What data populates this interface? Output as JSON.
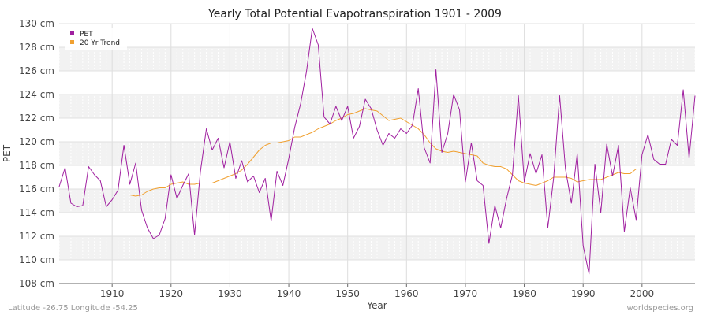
{
  "chart_data": {
    "type": "line",
    "title": "Yearly Total Potential Evapotranspiration 1901 - 2009",
    "xlabel": "Year",
    "ylabel": "PET",
    "xlim": [
      1901,
      2009
    ],
    "ylim": [
      108,
      130
    ],
    "y_unit": "cm",
    "x_ticks": [
      1910,
      1920,
      1930,
      1940,
      1950,
      1960,
      1970,
      1980,
      1990,
      2000
    ],
    "y_ticks": [
      108,
      110,
      112,
      114,
      116,
      118,
      120,
      122,
      124,
      126,
      128,
      130
    ],
    "y_tick_labels": [
      "108 cm",
      "110 cm",
      "112 cm",
      "114 cm",
      "116 cm",
      "118 cm",
      "120 cm",
      "122 cm",
      "124 cm",
      "126 cm",
      "128 cm",
      "130 cm"
    ],
    "grid": true,
    "legend_position": "top-left",
    "series": [
      {
        "name": "PET",
        "color": "#a020a0",
        "x": [
          1901,
          1902,
          1903,
          1904,
          1905,
          1906,
          1907,
          1908,
          1909,
          1910,
          1911,
          1912,
          1913,
          1914,
          1915,
          1916,
          1917,
          1918,
          1919,
          1920,
          1921,
          1922,
          1923,
          1924,
          1925,
          1926,
          1927,
          1928,
          1929,
          1930,
          1931,
          1932,
          1933,
          1934,
          1935,
          1936,
          1937,
          1938,
          1939,
          1940,
          1941,
          1942,
          1943,
          1944,
          1945,
          1946,
          1947,
          1948,
          1949,
          1950,
          1951,
          1952,
          1953,
          1954,
          1955,
          1956,
          1957,
          1958,
          1959,
          1960,
          1961,
          1962,
          1963,
          1964,
          1965,
          1966,
          1967,
          1968,
          1969,
          1970,
          1971,
          1972,
          1973,
          1974,
          1975,
          1976,
          1977,
          1978,
          1979,
          1980,
          1981,
          1982,
          1983,
          1984,
          1985,
          1986,
          1987,
          1988,
          1989,
          1990,
          1991,
          1992,
          1993,
          1994,
          1995,
          1996,
          1997,
          1998,
          1999,
          2000,
          2001,
          2002,
          2003,
          2004,
          2005,
          2006,
          2007,
          2008,
          2009
        ],
        "values": [
          116.2,
          117.8,
          114.8,
          114.5,
          114.6,
          117.9,
          117.2,
          116.7,
          114.5,
          115.1,
          115.9,
          119.7,
          116.4,
          118.2,
          114.2,
          112.7,
          111.8,
          112.1,
          113.5,
          117.2,
          115.2,
          116.3,
          117.3,
          112.1,
          117.5,
          121.1,
          119.3,
          120.3,
          117.8,
          120.0,
          116.9,
          118.4,
          116.6,
          117.1,
          115.7,
          116.9,
          113.3,
          117.5,
          116.3,
          118.6,
          121.2,
          123.2,
          125.9,
          129.6,
          128.2,
          122.1,
          121.5,
          123.0,
          121.8,
          123.0,
          120.3,
          121.3,
          123.6,
          122.8,
          121.0,
          119.7,
          120.7,
          120.3,
          121.1,
          120.7,
          121.4,
          124.5,
          119.5,
          118.2,
          126.1,
          119.1,
          120.7,
          124.0,
          122.7,
          116.6,
          119.9,
          116.7,
          116.3,
          111.4,
          114.6,
          112.7,
          115.2,
          117.2,
          123.9,
          116.6,
          119.0,
          117.3,
          118.9,
          112.7,
          117.0,
          123.9,
          117.7,
          114.8,
          119.0,
          111.2,
          108.8,
          118.1,
          114.0,
          119.8,
          117.1,
          119.7,
          112.4,
          116.1,
          113.4,
          118.9,
          120.6,
          118.5,
          118.1,
          118.1,
          120.2,
          119.7,
          124.4,
          118.6,
          123.9
        ]
      },
      {
        "name": "20 Yr Trend",
        "color": "#f0a030",
        "x": [
          1911,
          1912,
          1913,
          1914,
          1915,
          1916,
          1917,
          1918,
          1919,
          1920,
          1921,
          1922,
          1923,
          1924,
          1925,
          1926,
          1927,
          1928,
          1929,
          1930,
          1931,
          1932,
          1933,
          1934,
          1935,
          1936,
          1937,
          1938,
          1939,
          1940,
          1941,
          1942,
          1943,
          1944,
          1945,
          1946,
          1947,
          1948,
          1949,
          1950,
          1951,
          1952,
          1953,
          1954,
          1955,
          1956,
          1957,
          1958,
          1959,
          1960,
          1961,
          1962,
          1963,
          1964,
          1965,
          1966,
          1967,
          1968,
          1969,
          1970,
          1971,
          1972,
          1973,
          1974,
          1975,
          1976,
          1977,
          1978,
          1979,
          1980,
          1981,
          1982,
          1983,
          1984,
          1985,
          1986,
          1987,
          1988,
          1989,
          1990,
          1991,
          1992,
          1993,
          1994,
          1995,
          1996,
          1997,
          1998,
          1999
        ],
        "values": [
          115.5,
          115.5,
          115.5,
          115.4,
          115.5,
          115.8,
          116.0,
          116.1,
          116.1,
          116.4,
          116.5,
          116.6,
          116.4,
          116.4,
          116.5,
          116.5,
          116.5,
          116.7,
          116.9,
          117.1,
          117.3,
          117.6,
          118.1,
          118.7,
          119.3,
          119.7,
          119.9,
          119.9,
          120.0,
          120.1,
          120.4,
          120.4,
          120.6,
          120.8,
          121.1,
          121.3,
          121.5,
          121.8,
          122.0,
          122.3,
          122.4,
          122.6,
          122.8,
          122.7,
          122.6,
          122.2,
          121.8,
          121.9,
          122.0,
          121.7,
          121.4,
          121.1,
          120.6,
          119.9,
          119.4,
          119.2,
          119.1,
          119.2,
          119.1,
          119.0,
          118.9,
          118.8,
          118.2,
          118.0,
          117.9,
          117.9,
          117.7,
          117.2,
          116.7,
          116.5,
          116.4,
          116.3,
          116.5,
          116.7,
          117.0,
          117.0,
          117.0,
          116.9,
          116.6,
          116.7,
          116.8,
          116.8,
          116.8,
          117.0,
          117.2,
          117.4,
          117.3,
          117.3,
          117.7
        ]
      }
    ]
  },
  "footer": {
    "location": "Latitude -26.75 Longitude -54.25",
    "source": "worldspecies.org"
  }
}
